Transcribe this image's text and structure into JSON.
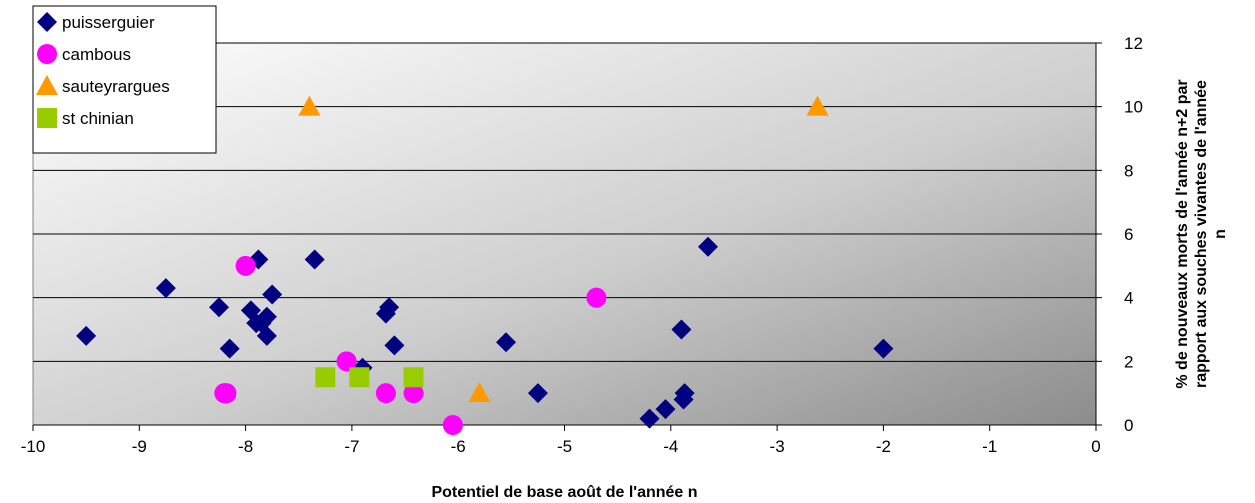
{
  "chart_data": {
    "type": "scatter",
    "xlabel": "Potentiel de base août de l'année n",
    "ylabel_lines": [
      "% de nouveaux morts de l'année n+2 par",
      "rapport aux souches vivantes de l'année",
      "n"
    ],
    "xlim": [
      -10,
      0
    ],
    "ylim": [
      0,
      12
    ],
    "x_ticks": [
      -10,
      -9,
      -8,
      -7,
      -6,
      -5,
      -4,
      -3,
      -2,
      -1,
      0
    ],
    "y_ticks": [
      0,
      2,
      4,
      6,
      8,
      10,
      12
    ],
    "y_axis_side": "right",
    "grid": "horizontal",
    "legend_position": "top-left",
    "series": [
      {
        "name": "puisserguier",
        "marker": "diamond",
        "color": "#000080",
        "points": [
          [
            -9.5,
            2.8
          ],
          [
            -8.75,
            4.3
          ],
          [
            -8.25,
            3.7
          ],
          [
            -8.15,
            2.4
          ],
          [
            -7.95,
            3.6
          ],
          [
            -7.9,
            3.2
          ],
          [
            -7.88,
            5.2
          ],
          [
            -7.85,
            3.2
          ],
          [
            -7.8,
            2.8
          ],
          [
            -7.8,
            3.4
          ],
          [
            -7.75,
            4.1
          ],
          [
            -7.35,
            5.2
          ],
          [
            -6.9,
            1.8
          ],
          [
            -6.68,
            3.5
          ],
          [
            -6.65,
            3.7
          ],
          [
            -6.6,
            2.5
          ],
          [
            -5.55,
            2.6
          ],
          [
            -5.25,
            1.0
          ],
          [
            -4.2,
            0.2
          ],
          [
            -4.05,
            0.5
          ],
          [
            -3.9,
            3.0
          ],
          [
            -3.88,
            0.8
          ],
          [
            -3.87,
            1.0
          ],
          [
            -3.65,
            5.6
          ],
          [
            -2.0,
            2.4
          ]
        ]
      },
      {
        "name": "cambous",
        "marker": "circle",
        "color": "#FF00FF",
        "points": [
          [
            -8.2,
            1.0
          ],
          [
            -8.18,
            1.0
          ],
          [
            -8.0,
            5.0
          ],
          [
            -7.05,
            2.0
          ],
          [
            -6.68,
            1.0
          ],
          [
            -6.42,
            1.0
          ],
          [
            -6.05,
            0.0
          ],
          [
            -4.7,
            4.0
          ]
        ]
      },
      {
        "name": "sauteyrargues",
        "marker": "triangle",
        "color": "#FF9900",
        "points": [
          [
            -7.4,
            10.0
          ],
          [
            -2.62,
            10.0
          ],
          [
            -5.8,
            1.0
          ]
        ]
      },
      {
        "name": "st chinian",
        "marker": "square",
        "color": "#99CC00",
        "points": [
          [
            -7.25,
            1.5
          ],
          [
            -6.93,
            1.5
          ],
          [
            -6.42,
            1.5
          ]
        ]
      }
    ]
  }
}
